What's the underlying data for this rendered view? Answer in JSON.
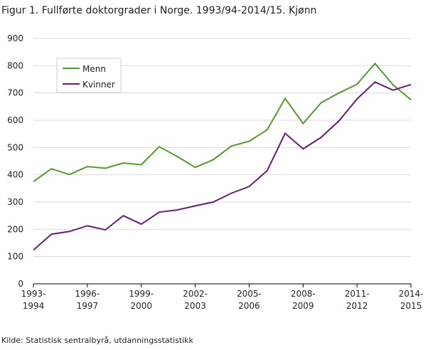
{
  "chart_data": {
    "type": "line",
    "title": "Figur 1. Fullførte doktorgrader i Norge. 1993/94-2014/15. Kjønn",
    "source": "Kilde: Statistisk sentralbyrå, utdanningsstatistikk",
    "categories": [
      "1993-\n1994",
      null,
      null,
      "1996-\n1997",
      null,
      null,
      "1999-\n2000",
      null,
      null,
      "2002-\n2003",
      null,
      null,
      "2005-\n2006",
      null,
      null,
      "2008-\n2009",
      null,
      null,
      "2011-\n2012",
      null,
      null,
      "2014-\n2015"
    ],
    "series": [
      {
        "name": "Menn",
        "color": "#559a2a",
        "values": [
          375,
          422,
          401,
          430,
          424,
          443,
          437,
          503,
          467,
          427,
          455,
          505,
          523,
          565,
          680,
          588,
          664,
          700,
          732,
          808,
          730,
          675
        ]
      },
      {
        "name": "Kvinner",
        "color": "#6c1a7c",
        "values": [
          124,
          182,
          192,
          213,
          198,
          250,
          219,
          263,
          271,
          286,
          300,
          332,
          357,
          415,
          552,
          495,
          537,
          598,
          678,
          740,
          710,
          731
        ]
      }
    ],
    "ylim": [
      0,
      900
    ],
    "yticks": [
      0,
      100,
      200,
      300,
      400,
      500,
      600,
      700,
      800,
      900
    ],
    "grid": true,
    "legend": "upper-left"
  }
}
